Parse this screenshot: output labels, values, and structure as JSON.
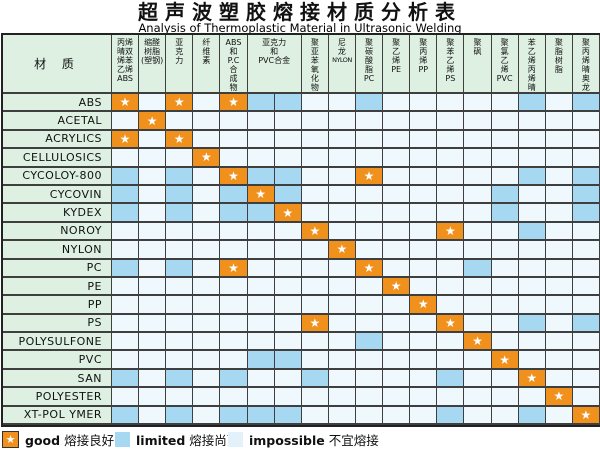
{
  "title": "超声波塑胶熔接材质分析表",
  "subtitle": "Analysis of Thermoplastic Material in Ultrasonic Welding",
  "corner_label": "材 质",
  "colors": {
    "good": "#f0911d",
    "limited": "#a7d8f1",
    "impossible": "#eff8fd",
    "header_bg": "#def0e2",
    "grid": "#3f3f3f"
  },
  "legend": [
    {
      "symbol": "star",
      "en": "good",
      "zh": "熔接良好"
    },
    {
      "symbol": "blue-box",
      "en": "limited",
      "zh": "熔接尚可"
    },
    {
      "symbol": "pale-box",
      "en": "impossible",
      "zh": "不宜熔接"
    }
  ],
  "chart_data": {
    "type": "heatmap",
    "title": "超声波塑胶熔接材质分析表",
    "subtitle": "Analysis of Thermoplastic Material in Ultrasonic Welding",
    "value_key": {
      "g": "good 熔接良好",
      "l": "limited 熔接尚可",
      "-": "impossible 不宜熔接"
    },
    "columns": [
      {
        "label": "丙烯晴双烯苯乙烯ABS",
        "lines": [
          "丙烯",
          "晴双",
          "烯苯",
          "乙烯",
          "ABS"
        ],
        "span": 1
      },
      {
        "label": "缩醛树脂(塑钢)",
        "lines": [
          "缩醛",
          "树脂",
          "(塑钢)"
        ],
        "span": 1
      },
      {
        "label": "亚克力",
        "lines": [
          "亚",
          "克",
          "力"
        ],
        "span": 1
      },
      {
        "label": "纤维素",
        "lines": [
          "纤",
          "维",
          "素"
        ],
        "span": 1
      },
      {
        "label": "ABS和P.C合成物",
        "lines": [
          "ABS",
          "和",
          "P.C",
          "合",
          "成",
          "物"
        ],
        "span": 1
      },
      {
        "label": "亚克力和PVC合金",
        "lines": [
          "亚克力",
          "和",
          "PVC合金"
        ],
        "span": 2
      },
      {
        "label": "聚亚苯氧化物",
        "lines": [
          "聚",
          "亚",
          "苯",
          "氧",
          "化",
          "物"
        ],
        "span": 1
      },
      {
        "label": "尼龙NYLON",
        "lines": [
          "尼",
          "龙",
          "NYLON"
        ],
        "span": 1
      },
      {
        "label": "聚碳酸脂PC",
        "lines": [
          "聚",
          "碳",
          "酸",
          "脂",
          "PC"
        ],
        "span": 1
      },
      {
        "label": "聚乙烯PE",
        "lines": [
          "聚",
          "乙",
          "烯",
          "PE"
        ],
        "span": 1
      },
      {
        "label": "聚丙烯PP",
        "lines": [
          "聚",
          "丙",
          "烯",
          "PP"
        ],
        "span": 1
      },
      {
        "label": "聚苯乙烯PS",
        "lines": [
          "聚",
          "苯",
          "乙",
          "烯",
          "PS"
        ],
        "span": 1
      },
      {
        "label": "聚砜",
        "lines": [
          "聚",
          "砜"
        ],
        "span": 1
      },
      {
        "label": "聚氯乙烯PVC",
        "lines": [
          "聚",
          "氯",
          "乙",
          "烯",
          "PVC"
        ],
        "span": 1
      },
      {
        "label": "苯乙烯丙烯晴",
        "lines": [
          "苯",
          "乙",
          "烯",
          "丙",
          "烯",
          "晴"
        ],
        "span": 1
      },
      {
        "label": "聚脂树脂",
        "lines": [
          "聚",
          "脂",
          "树",
          "脂"
        ],
        "span": 1
      },
      {
        "label": "聚丙烯晴奥龙",
        "lines": [
          "聚",
          "丙",
          "烯",
          "晴",
          "奥",
          "龙"
        ],
        "span": 1
      }
    ],
    "rows": [
      "ABS",
      "ACETAL",
      "ACRYLICS",
      "CELLULOSICS",
      "CYCOLOY-800",
      "CYCOVIN",
      "KYDEX",
      "NOROY",
      "NYLON",
      "PC",
      "PE",
      "PP",
      "PS",
      "POLYSULFONE",
      "PVC",
      "SAN",
      "POLYESTER",
      "XT-POL YMER"
    ],
    "matrix": [
      "g-g-gll--l-----l-l",
      "-g----------------",
      "g-g---------------",
      "---g--------------",
      "l-l-gll--g-----l-l",
      "l-l-lgl-------l--l",
      "l-l-llg-------l--l",
      "-------g----g--l--",
      "--------g---------",
      "l-l-g----g---l----",
      "----------g-------",
      "-----------g------",
      "-------g----g--l-l",
      "---------l---g----",
      "-----ll-------g---",
      "l-l-l--l----l--g--",
      "----------------g-",
      "l-l-lll-----l--l-g"
    ]
  }
}
